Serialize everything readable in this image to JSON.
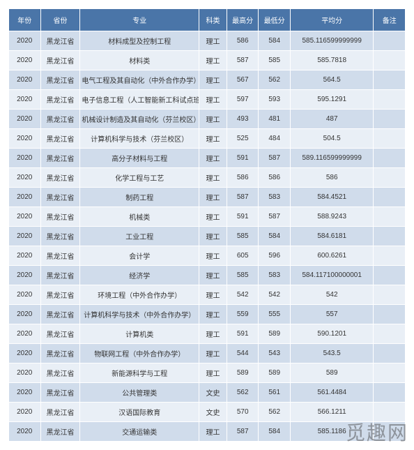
{
  "watermark": "觅趣网",
  "table": {
    "columns": [
      "年份",
      "省份",
      "专业",
      "科类",
      "最高分",
      "最低分",
      "平均分",
      "备注"
    ],
    "rows": [
      [
        "2020",
        "黑龙江省",
        "材料成型及控制工程",
        "理工",
        "586",
        "584",
        "585.116599999999",
        ""
      ],
      [
        "2020",
        "黑龙江省",
        "材料类",
        "理工",
        "587",
        "585",
        "585.7818",
        ""
      ],
      [
        "2020",
        "黑龙江省",
        "电气工程及其自动化（中外合作办学）",
        "理工",
        "567",
        "562",
        "564.5",
        ""
      ],
      [
        "2020",
        "黑龙江省",
        "电子信息工程（人工智能新工科试点班）",
        "理工",
        "597",
        "593",
        "595.1291",
        ""
      ],
      [
        "2020",
        "黑龙江省",
        "机械设计制造及其自动化（芬兰校区）",
        "理工",
        "493",
        "481",
        "487",
        ""
      ],
      [
        "2020",
        "黑龙江省",
        "计算机科学与技术（芬兰校区）",
        "理工",
        "525",
        "484",
        "504.5",
        ""
      ],
      [
        "2020",
        "黑龙江省",
        "高分子材料与工程",
        "理工",
        "591",
        "587",
        "589.116599999999",
        ""
      ],
      [
        "2020",
        "黑龙江省",
        "化学工程与工艺",
        "理工",
        "586",
        "586",
        "586",
        ""
      ],
      [
        "2020",
        "黑龙江省",
        "制药工程",
        "理工",
        "587",
        "583",
        "584.4521",
        ""
      ],
      [
        "2020",
        "黑龙江省",
        "机械类",
        "理工",
        "591",
        "587",
        "588.9243",
        ""
      ],
      [
        "2020",
        "黑龙江省",
        "工业工程",
        "理工",
        "585",
        "584",
        "584.6181",
        ""
      ],
      [
        "2020",
        "黑龙江省",
        "会计学",
        "理工",
        "605",
        "596",
        "600.6261",
        ""
      ],
      [
        "2020",
        "黑龙江省",
        "经济学",
        "理工",
        "585",
        "583",
        "584.117100000001",
        ""
      ],
      [
        "2020",
        "黑龙江省",
        "环境工程（中外合作办学）",
        "理工",
        "542",
        "542",
        "542",
        ""
      ],
      [
        "2020",
        "黑龙江省",
        "计算机科学与技术（中外合作办学）",
        "理工",
        "559",
        "555",
        "557",
        ""
      ],
      [
        "2020",
        "黑龙江省",
        "计算机类",
        "理工",
        "591",
        "589",
        "590.1201",
        ""
      ],
      [
        "2020",
        "黑龙江省",
        "物联网工程（中外合作办学）",
        "理工",
        "544",
        "543",
        "543.5",
        ""
      ],
      [
        "2020",
        "黑龙江省",
        "新能源科学与工程",
        "理工",
        "589",
        "589",
        "589",
        ""
      ],
      [
        "2020",
        "黑龙江省",
        "公共管理类",
        "文史",
        "562",
        "561",
        "561.4484",
        ""
      ],
      [
        "2020",
        "黑龙江省",
        "汉语国际教育",
        "文史",
        "570",
        "562",
        "566.1211",
        ""
      ],
      [
        "2020",
        "黑龙江省",
        "交通运输类",
        "理工",
        "587",
        "584",
        "585.1186",
        ""
      ]
    ]
  }
}
